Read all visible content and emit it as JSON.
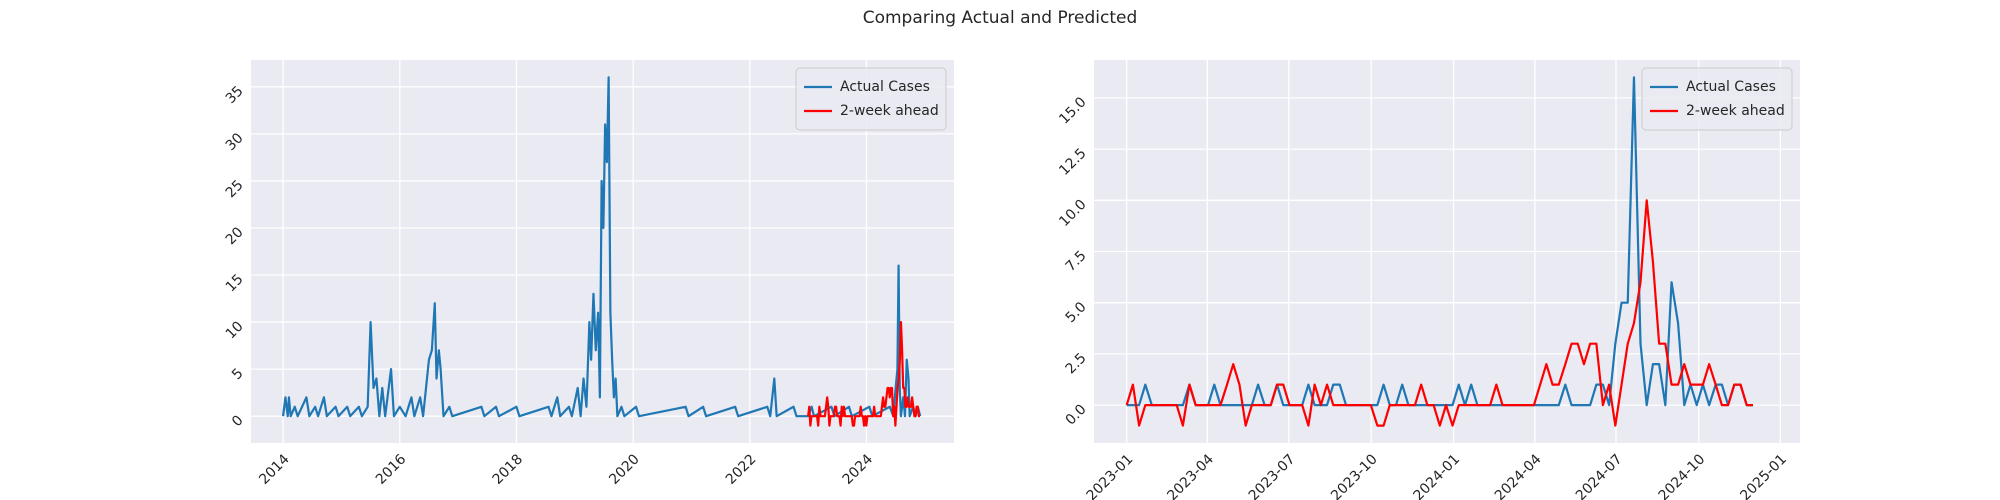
{
  "title": "Comparing Actual and Predicted",
  "chart_data": [
    {
      "type": "line",
      "xlim": [
        2013.45,
        2025.5
      ],
      "ylim": [
        -2.85,
        37.85
      ],
      "xticks": [
        2014,
        2016,
        2018,
        2020,
        2022,
        2024
      ],
      "yticks": [
        0,
        5,
        10,
        15,
        20,
        25,
        30,
        35
      ],
      "grid": true,
      "legend": "upper right",
      "series": [
        {
          "name": "Actual Cases",
          "color": "#1f77b4",
          "x": [
            2014.0,
            2014.04,
            2014.08,
            2014.1,
            2014.13,
            2014.2,
            2014.25,
            2014.4,
            2014.45,
            2014.55,
            2014.6,
            2014.7,
            2014.75,
            2014.9,
            2014.95,
            2015.1,
            2015.15,
            2015.3,
            2015.35,
            2015.45,
            2015.5,
            2015.55,
            2015.6,
            2015.65,
            2015.7,
            2015.75,
            2015.85,
            2015.9,
            2016.0,
            2016.1,
            2016.2,
            2016.25,
            2016.35,
            2016.4,
            2016.5,
            2016.55,
            2016.6,
            2016.63,
            2016.67,
            2016.7,
            2016.75,
            2016.85,
            2016.9,
            2017.4,
            2017.45,
            2017.65,
            2017.7,
            2018.0,
            2018.05,
            2018.55,
            2018.6,
            2018.7,
            2018.75,
            2018.9,
            2018.95,
            2019.05,
            2019.1,
            2019.15,
            2019.2,
            2019.25,
            2019.28,
            2019.32,
            2019.36,
            2019.4,
            2019.43,
            2019.46,
            2019.49,
            2019.52,
            2019.55,
            2019.58,
            2019.61,
            2019.64,
            2019.67,
            2019.7,
            2019.73,
            2019.8,
            2019.85,
            2020.05,
            2020.1,
            2020.9,
            2020.95,
            2021.2,
            2021.25,
            2021.75,
            2021.8,
            2022.3,
            2022.35,
            2022.42,
            2022.46,
            2022.75,
            2022.8,
            2023.0,
            2023.06,
            2023.1,
            2023.4,
            2023.45,
            2023.7,
            2023.75,
            2024.05,
            2024.1,
            2024.4,
            2024.46,
            2024.5,
            2024.53,
            2024.55,
            2024.57,
            2024.59,
            2024.63,
            2024.66,
            2024.69,
            2024.72,
            2024.74,
            2024.8,
            2024.84,
            2024.88,
            2024.92
          ],
          "values": [
            0,
            2,
            0,
            2,
            0,
            1,
            0,
            2,
            0,
            1,
            0,
            2,
            0,
            1,
            0,
            1,
            0,
            1,
            0,
            1,
            10,
            3,
            4,
            0,
            3,
            0,
            5,
            0,
            1,
            0,
            2,
            0,
            2,
            0,
            6,
            7,
            12,
            4,
            7,
            5,
            0,
            1,
            0,
            1,
            0,
            1,
            0,
            1,
            0,
            1,
            0,
            2,
            0,
            1,
            0,
            3,
            0,
            4,
            1,
            10,
            6,
            13,
            7,
            11,
            2,
            25,
            20,
            31,
            27,
            36,
            11,
            6,
            2,
            4,
            0,
            1,
            0,
            1,
            0,
            1,
            0,
            1,
            0,
            1,
            0,
            1,
            0,
            4,
            0,
            1,
            0,
            0,
            1,
            0,
            1,
            0,
            1,
            0,
            1,
            0,
            1,
            0,
            3,
            5,
            16,
            3,
            0,
            2,
            0,
            6,
            4,
            0,
            1,
            0,
            1,
            0
          ]
        },
        {
          "name": "2-week ahead",
          "color": "#ff0000",
          "x": [
            2023.0,
            2023.019,
            2023.038,
            2023.057,
            2023.077,
            2023.096,
            2023.115,
            2023.134,
            2023.153,
            2023.172,
            2023.192,
            2023.211,
            2023.23,
            2023.249,
            2023.268,
            2023.287,
            2023.307,
            2023.326,
            2023.345,
            2023.364,
            2023.383,
            2023.402,
            2023.422,
            2023.441,
            2023.46,
            2023.479,
            2023.498,
            2023.517,
            2023.537,
            2023.556,
            2023.575,
            2023.594,
            2023.613,
            2023.632,
            2023.652,
            2023.671,
            2023.69,
            2023.709,
            2023.728,
            2023.747,
            2023.767,
            2023.786,
            2023.805,
            2023.824,
            2023.843,
            2023.862,
            2023.882,
            2023.901,
            2023.92,
            2023.939,
            2023.958,
            2023.977,
            2023.997,
            2024.016,
            2024.035,
            2024.054,
            2024.073,
            2024.092,
            2024.112,
            2024.131,
            2024.15,
            2024.169,
            2024.188,
            2024.207,
            2024.227,
            2024.246,
            2024.265,
            2024.284,
            2024.303,
            2024.322,
            2024.342,
            2024.361,
            2024.38,
            2024.399,
            2024.418,
            2024.437,
            2024.457,
            2024.476,
            2024.495,
            2024.514,
            2024.533,
            2024.552,
            2024.572,
            2024.591,
            2024.61,
            2024.629,
            2024.648,
            2024.667,
            2024.687,
            2024.706,
            2024.725,
            2024.744,
            2024.763,
            2024.782,
            2024.802,
            2024.821,
            2024.84,
            2024.859,
            2024.878,
            2024.897,
            2024.916
          ],
          "values": [
            0,
            1,
            -1,
            0,
            0,
            0,
            0,
            0,
            0,
            -1,
            1,
            0,
            0,
            0,
            0,
            0,
            1,
            2,
            1,
            -1,
            0,
            0,
            0,
            0,
            1,
            1,
            0,
            0,
            0,
            -1,
            1,
            0,
            1,
            0,
            0,
            0,
            0,
            0,
            0,
            0,
            -1,
            -1,
            0,
            0,
            0,
            0,
            0,
            1,
            0,
            0,
            -1,
            0,
            -1,
            0,
            0,
            0,
            0,
            0,
            0,
            1,
            0,
            0,
            0,
            0,
            0,
            0,
            1,
            2,
            1,
            1,
            2,
            3,
            3,
            2,
            3,
            3,
            0,
            1,
            -1,
            1,
            3,
            4,
            6,
            10,
            7,
            3,
            3,
            1,
            1,
            2,
            1,
            1,
            1,
            2,
            1,
            0,
            0,
            1,
            1,
            0,
            0
          ]
        }
      ]
    },
    {
      "type": "line",
      "xlim": [
        2022.9,
        2025.06
      ],
      "ylim": [
        -1.85,
        16.85
      ],
      "xticks": [
        {
          "value": 2023.0,
          "label": "2023-01"
        },
        {
          "value": 2023.247,
          "label": "2023-04"
        },
        {
          "value": 2023.496,
          "label": "2023-07"
        },
        {
          "value": 2023.748,
          "label": "2023-10"
        },
        {
          "value": 2024.0,
          "label": "2024-01"
        },
        {
          "value": 2024.249,
          "label": "2024-04"
        },
        {
          "value": 2024.497,
          "label": "2024-07"
        },
        {
          "value": 2024.75,
          "label": "2024-10"
        },
        {
          "value": 2025.0,
          "label": "2025-01"
        }
      ],
      "yticks": [
        {
          "value": 0,
          "label": "0.0"
        },
        {
          "value": 2.5,
          "label": "2.5"
        },
        {
          "value": 5,
          "label": "5.0"
        },
        {
          "value": 7.5,
          "label": "7.5"
        },
        {
          "value": 10,
          "label": "10.0"
        },
        {
          "value": 12.5,
          "label": "12.5"
        },
        {
          "value": 15,
          "label": "15.0"
        }
      ],
      "grid": true,
      "legend": "upper right",
      "x": [
        2023.0,
        2023.019,
        2023.038,
        2023.057,
        2023.077,
        2023.096,
        2023.115,
        2023.134,
        2023.153,
        2023.172,
        2023.192,
        2023.211,
        2023.23,
        2023.249,
        2023.268,
        2023.287,
        2023.307,
        2023.326,
        2023.345,
        2023.364,
        2023.383,
        2023.402,
        2023.422,
        2023.441,
        2023.46,
        2023.479,
        2023.498,
        2023.517,
        2023.537,
        2023.556,
        2023.575,
        2023.594,
        2023.613,
        2023.632,
        2023.652,
        2023.671,
        2023.69,
        2023.709,
        2023.728,
        2023.747,
        2023.767,
        2023.786,
        2023.805,
        2023.824,
        2023.843,
        2023.862,
        2023.882,
        2023.901,
        2023.92,
        2023.939,
        2023.958,
        2023.977,
        2023.997,
        2024.016,
        2024.035,
        2024.054,
        2024.073,
        2024.092,
        2024.112,
        2024.131,
        2024.15,
        2024.169,
        2024.188,
        2024.207,
        2024.227,
        2024.246,
        2024.265,
        2024.284,
        2024.303,
        2024.322,
        2024.342,
        2024.361,
        2024.38,
        2024.399,
        2024.418,
        2024.437,
        2024.457,
        2024.476,
        2024.495,
        2024.514,
        2024.533,
        2024.552,
        2024.572,
        2024.591,
        2024.61,
        2024.629,
        2024.648,
        2024.667,
        2024.687,
        2024.706,
        2024.725,
        2024.744,
        2024.763,
        2024.782,
        2024.802,
        2024.821,
        2024.84,
        2024.859,
        2024.878,
        2024.897,
        2024.916
      ],
      "series": [
        {
          "name": "Actual Cases",
          "color": "#1f77b4",
          "values": [
            0,
            0,
            0,
            1,
            0,
            0,
            0,
            0,
            0,
            0,
            1,
            0,
            0,
            0,
            1,
            0,
            0,
            0,
            0,
            0,
            0,
            1,
            0,
            0,
            1,
            0,
            0,
            0,
            0,
            1,
            0,
            0,
            0,
            1,
            1,
            0,
            0,
            0,
            0,
            0,
            0,
            1,
            0,
            0,
            1,
            0,
            0,
            0,
            0,
            0,
            0,
            0,
            0,
            1,
            0,
            1,
            0,
            0,
            0,
            0,
            0,
            0,
            0,
            0,
            0,
            0,
            0,
            0,
            0,
            0,
            1,
            0,
            0,
            0,
            0,
            1,
            1,
            0,
            3,
            5,
            5,
            16,
            3,
            0,
            2,
            2,
            0,
            6,
            4,
            0,
            1,
            0,
            1,
            0,
            1,
            1,
            0,
            1,
            1,
            0,
            0
          ]
        },
        {
          "name": "2-week ahead",
          "color": "#ff0000",
          "values": [
            0,
            1,
            -1,
            0,
            0,
            0,
            0,
            0,
            0,
            -1,
            1,
            0,
            0,
            0,
            0,
            0,
            1,
            2,
            1,
            -1,
            0,
            0,
            0,
            0,
            1,
            1,
            0,
            0,
            0,
            -1,
            1,
            0,
            1,
            0,
            0,
            0,
            0,
            0,
            0,
            0,
            -1,
            -1,
            0,
            0,
            0,
            0,
            0,
            1,
            0,
            0,
            -1,
            0,
            -1,
            0,
            0,
            0,
            0,
            0,
            0,
            1,
            0,
            0,
            0,
            0,
            0,
            0,
            1,
            2,
            1,
            1,
            2,
            3,
            3,
            2,
            3,
            3,
            0,
            1,
            -1,
            1,
            3,
            4,
            6,
            10,
            7,
            3,
            3,
            1,
            1,
            2,
            1,
            1,
            1,
            2,
            1,
            0,
            0,
            1,
            1,
            0,
            0
          ]
        }
      ]
    }
  ]
}
